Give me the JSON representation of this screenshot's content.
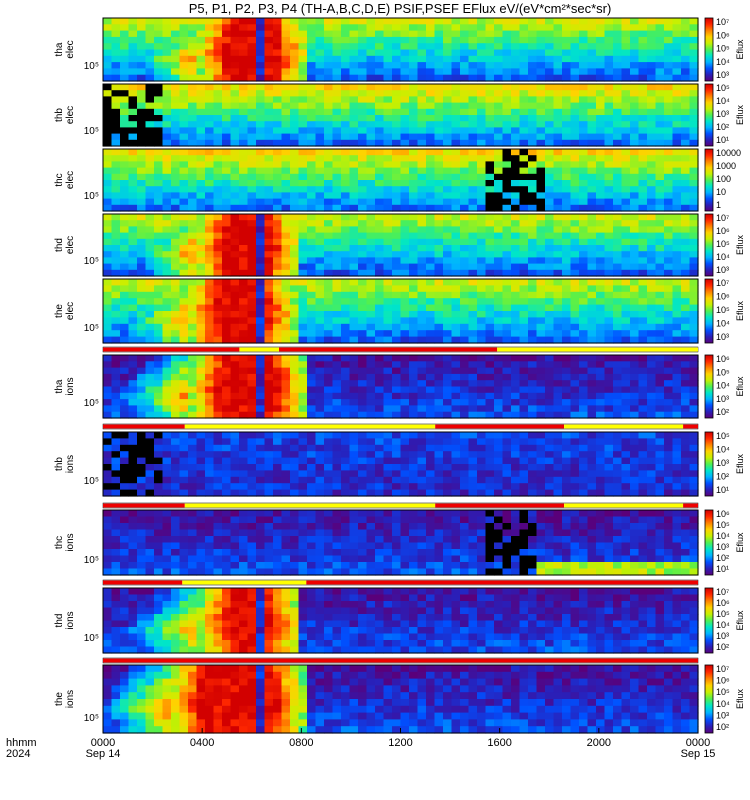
{
  "title": "P5, P1, P2, P3, P4 (TH-A,B,C,D,E) PSIF,PSEF EFlux eV/(eV*cm²*sec*sr)",
  "colors": {
    "background": "#ffffff",
    "bar_red": "#ee0000",
    "bar_yellow": "#ffff00",
    "colormap": [
      "#5a007a",
      "#2a1fb8",
      "#0050ff",
      "#00b4ff",
      "#00e6c8",
      "#50f050",
      "#c8f000",
      "#ffd200",
      "#ff8200",
      "#ff2800",
      "#d20000"
    ]
  },
  "chart_data": {
    "type": "heatmap",
    "x_axis": {
      "label_lines": [
        "hhmm",
        "2024"
      ],
      "ticks": [
        "0000",
        "0400",
        "0800",
        "1200",
        "1600",
        "2000",
        "0000"
      ],
      "tick_hours": [
        0,
        4,
        8,
        12,
        16,
        20,
        24
      ],
      "date_labels": [
        {
          "text": "Sep 14",
          "hour": 0
        },
        {
          "text": "Sep 15",
          "hour": 24
        }
      ],
      "range_hours": [
        0,
        24
      ]
    },
    "panels": [
      {
        "id": "tha-elec",
        "ylabel": [
          "tha",
          "elec"
        ],
        "ytick": "10⁵",
        "colorbar": {
          "label": "Eflux",
          "ticks": [
            "10⁷",
            "10⁶",
            "10⁵",
            "10⁴",
            "10³"
          ]
        }
      },
      {
        "id": "thb-elec",
        "ylabel": [
          "thb",
          "elec"
        ],
        "ytick": "10⁵",
        "colorbar": {
          "label": "Eflux",
          "ticks": [
            "10⁵",
            "10⁴",
            "10³",
            "10²",
            "10¹"
          ]
        }
      },
      {
        "id": "thc-elec",
        "ylabel": [
          "thc",
          "elec"
        ],
        "ytick": "10⁵",
        "colorbar": {
          "label": "",
          "ticks": [
            "10000",
            "1000",
            "100",
            "10",
            "1"
          ]
        }
      },
      {
        "id": "thd-elec",
        "ylabel": [
          "thd",
          "elec"
        ],
        "ytick": "10⁵",
        "colorbar": {
          "label": "Eflux",
          "ticks": [
            "10⁷",
            "10⁶",
            "10⁵",
            "10⁴",
            "10³"
          ]
        }
      },
      {
        "id": "the-elec",
        "ylabel": [
          "the",
          "elec"
        ],
        "ytick": "10⁵",
        "colorbar": {
          "label": "Eflux",
          "ticks": [
            "10⁷",
            "10⁶",
            "10⁵",
            "10⁴",
            "10³"
          ]
        }
      },
      {
        "id": "tha-ions",
        "ylabel": [
          "tha",
          "ions"
        ],
        "ytick": "10⁵",
        "colorbar": {
          "label": "Eflux",
          "ticks": [
            "10⁶",
            "10⁵",
            "10⁴",
            "10³",
            "10²"
          ]
        }
      },
      {
        "id": "thb-ions",
        "ylabel": [
          "thb",
          "ions"
        ],
        "ytick": "10⁵",
        "colorbar": {
          "label": "Eflux",
          "ticks": [
            "10⁵",
            "10⁴",
            "10³",
            "10²",
            "10¹"
          ]
        }
      },
      {
        "id": "thc-ions",
        "ylabel": [
          "thc",
          "ions"
        ],
        "ytick": "10⁵",
        "colorbar": {
          "label": "Eflux",
          "ticks": [
            "10⁶",
            "10⁵",
            "10⁴",
            "10³",
            "10²",
            "10¹"
          ]
        }
      },
      {
        "id": "thd-ions",
        "ylabel": [
          "thd",
          "ions"
        ],
        "ytick": "10⁵",
        "colorbar": {
          "label": "Eflux",
          "ticks": [
            "10⁷",
            "10⁶",
            "10⁵",
            "10⁴",
            "10³",
            "10²"
          ]
        }
      },
      {
        "id": "the-ions",
        "ylabel": [
          "the",
          "ions"
        ],
        "ytick": "10⁵",
        "colorbar": {
          "label": "Eflux",
          "ticks": [
            "10⁷",
            "10⁶",
            "10⁵",
            "10⁴",
            "10³",
            "10²"
          ]
        }
      }
    ],
    "mode_bars": [
      {
        "after_panel": "the-elec",
        "segments": [
          {
            "color": "red",
            "start": 0,
            "end": 5.5
          },
          {
            "color": "yellow",
            "start": 5.5,
            "end": 7.1
          },
          {
            "color": "red",
            "start": 7.1,
            "end": 15.9
          },
          {
            "color": "yellow",
            "start": 15.9,
            "end": 24
          }
        ]
      },
      {
        "after_panel": "tha-ions",
        "segments": [
          {
            "color": "red",
            "start": 0,
            "end": 3.3
          },
          {
            "color": "yellow",
            "start": 3.3,
            "end": 13.4
          },
          {
            "color": "red",
            "start": 13.4,
            "end": 18.6
          },
          {
            "color": "yellow",
            "start": 18.6,
            "end": 23.4
          },
          {
            "color": "red",
            "start": 23.4,
            "end": 24
          }
        ]
      },
      {
        "after_panel": "thb-ions",
        "segments": [
          {
            "color": "red",
            "start": 0,
            "end": 3.3
          },
          {
            "color": "yellow",
            "start": 3.3,
            "end": 13.4
          },
          {
            "color": "red",
            "start": 13.4,
            "end": 18.6
          },
          {
            "color": "yellow",
            "start": 18.6,
            "end": 23.4
          },
          {
            "color": "red",
            "start": 23.4,
            "end": 24
          }
        ]
      },
      {
        "after_panel": "thc-ions",
        "segments": [
          {
            "color": "red",
            "start": 0,
            "end": 3.2
          },
          {
            "color": "yellow",
            "start": 3.2,
            "end": 8.2
          },
          {
            "color": "red",
            "start": 8.2,
            "end": 24
          }
        ]
      },
      {
        "after_panel": "thd-ions",
        "segments": [
          {
            "color": "red",
            "start": 0,
            "end": 24
          }
        ]
      }
    ]
  }
}
